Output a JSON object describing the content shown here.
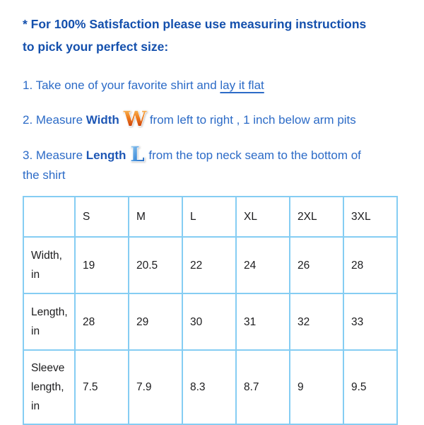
{
  "note": {
    "line1": "* For 100% Satisfaction please use measuring instructions",
    "line2": "to pick your perfect size:"
  },
  "steps": {
    "step1": {
      "prefix": "1. Take one of your favorite shirt and ",
      "underlined": "lay it flat"
    },
    "step2": {
      "prefix": "2. Measure ",
      "keyword": "Width",
      "icon": "W",
      "suffix": "from left to right , 1 inch below arm pits"
    },
    "step3": {
      "prefix": "3. Measure ",
      "keyword": "Length",
      "icon": "L",
      "suffix_line1": "from the top neck seam to the bottom of",
      "suffix_line2": "the shirt"
    }
  },
  "size_table": {
    "columns": [
      "",
      "S",
      "M",
      "L",
      "XL",
      "2XL",
      "3XL"
    ],
    "rows": [
      {
        "label": "Width, in",
        "values": [
          "19",
          "20.5",
          "22",
          "24",
          "26",
          "28"
        ]
      },
      {
        "label": "Length, in",
        "values": [
          "28",
          "29",
          "30",
          "31",
          "32",
          "33"
        ]
      },
      {
        "label": "Sleeve length, in",
        "values": [
          "7.5",
          "7.9",
          "8.3",
          "8.7",
          "9",
          "9.5"
        ]
      }
    ]
  },
  "colors": {
    "heading_blue": "#1450ad",
    "body_blue": "#2c6bc7",
    "keyword_blue": "#1e57b5",
    "table_border_blue": "#85cdf3",
    "table_text": "#1c1c1e",
    "w_icon_top": "#fbca6b",
    "w_icon_mid": "#ee7c1c",
    "w_icon_bottom": "#b92405",
    "l_icon_top": "#a9d7f3",
    "l_icon_mid": "#4a95dd",
    "l_icon_bottom": "#1b5fbe"
  }
}
